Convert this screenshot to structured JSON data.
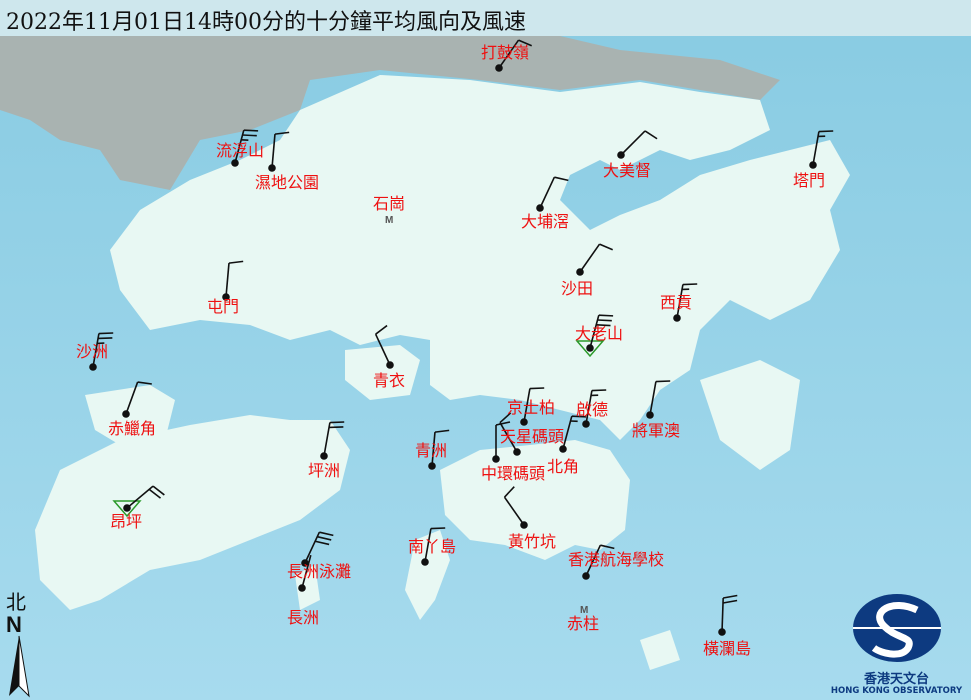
{
  "title": "2022年11月01日14時00分的十分鐘平均風向及風速",
  "colors": {
    "sea": "#8ccde3",
    "land": "#e9f8f3",
    "label": "#ee1111",
    "barb": "#111111",
    "logo": "#0d3a80"
  },
  "north_arrow": {
    "label": "北",
    "letter": "N"
  },
  "logo": {
    "cn": "香港天文台",
    "en": "HONG KONG OBSERVATORY"
  },
  "stations": [
    {
      "name": "打鼓嶺",
      "type": "wind",
      "dir_deg": 35,
      "barbs": 1
    },
    {
      "name": "流浮山",
      "type": "wind",
      "dir_deg": 15,
      "barbs": 2.5
    },
    {
      "name": "濕地公園",
      "type": "wind",
      "dir_deg": 5,
      "barbs": 1
    },
    {
      "name": "石崗",
      "type": "missing"
    },
    {
      "name": "大美督",
      "type": "wind",
      "dir_deg": 45,
      "barbs": 1
    },
    {
      "name": "塔門",
      "type": "wind",
      "dir_deg": 10,
      "barbs": 1.5
    },
    {
      "name": "大埔滘",
      "type": "wind",
      "dir_deg": 25,
      "barbs": 1
    },
    {
      "name": "沙田",
      "type": "wind",
      "dir_deg": 35,
      "barbs": 1
    },
    {
      "name": "屯門",
      "type": "wind",
      "dir_deg": 5,
      "barbs": 1
    },
    {
      "name": "西貢",
      "type": "wind",
      "dir_deg": 10,
      "barbs": 1.5
    },
    {
      "name": "大老山",
      "type": "wind",
      "marker": "triangle",
      "dir_deg": 15,
      "barbs": 3
    },
    {
      "name": "沙洲",
      "type": "wind",
      "dir_deg": 10,
      "barbs": 2.5
    },
    {
      "name": "青衣",
      "type": "wind",
      "dir_deg": 335,
      "barbs": 1
    },
    {
      "name": "赤鱲角",
      "type": "wind",
      "dir_deg": 20,
      "barbs": 1
    },
    {
      "name": "京士柏",
      "type": "wind",
      "dir_deg": 10,
      "barbs": 1
    },
    {
      "name": "啟德",
      "type": "wind",
      "dir_deg": 10,
      "barbs": 1.5
    },
    {
      "name": "將軍澳",
      "type": "wind",
      "dir_deg": 10,
      "barbs": 1
    },
    {
      "name": "坪洲",
      "type": "wind",
      "dir_deg": 10,
      "barbs": 2
    },
    {
      "name": "青洲",
      "type": "wind",
      "dir_deg": 5,
      "barbs": 1
    },
    {
      "name": "天星碼頭",
      "type": "wind",
      "dir_deg": 330,
      "barbs": 1
    },
    {
      "name": "中環碼頭",
      "type": "wind",
      "dir_deg": 0,
      "barbs": 1
    },
    {
      "name": "北角",
      "type": "wind",
      "dir_deg": 15,
      "barbs": 1.5
    },
    {
      "name": "昂坪",
      "type": "wind",
      "marker": "triangle",
      "dir_deg": 50,
      "barbs": 2
    },
    {
      "name": "黃竹坑",
      "type": "wind",
      "dir_deg": 325,
      "barbs": 1
    },
    {
      "name": "南丫島",
      "type": "wind",
      "dir_deg": 10,
      "barbs": 1
    },
    {
      "name": "香港航海學校",
      "type": "wind",
      "dir_deg": 25,
      "barbs": 1
    },
    {
      "name": "長洲泳灘",
      "type": "wind",
      "dir_deg": 25,
      "barbs": 3
    },
    {
      "name": "長洲",
      "type": "wind",
      "dir_deg": 15,
      "barbs": 0
    },
    {
      "name": "赤柱",
      "type": "missing"
    },
    {
      "name": "橫瀾島",
      "type": "wind",
      "dir_deg": 2,
      "barbs": 2
    }
  ]
}
